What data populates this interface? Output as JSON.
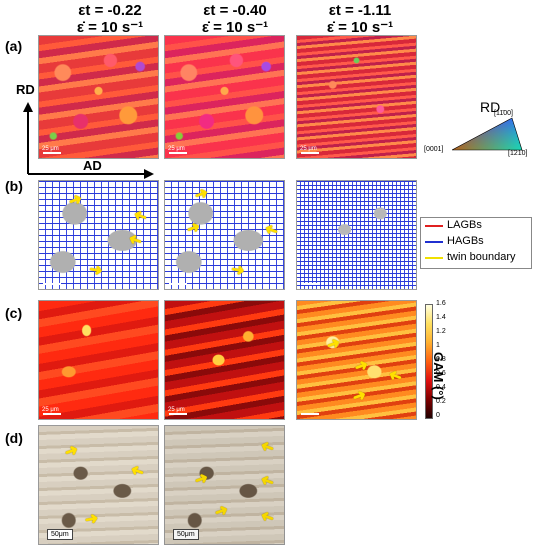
{
  "columns": [
    {
      "strain": "εt = -0.22",
      "rate": "ε̇ = 10 s⁻¹"
    },
    {
      "strain": "εt = -0.40",
      "rate": "ε̇ = 10 s⁻¹"
    },
    {
      "strain": "εt = -1.11",
      "rate": "ε̇ = 10 s⁻¹"
    }
  ],
  "rows": {
    "a": "(a)",
    "b": "(b)",
    "c": "(c)",
    "d": "(d)"
  },
  "axes": {
    "rd": "RD",
    "ad": "AD"
  },
  "ipf_key": {
    "title": "RD",
    "corner_left": "[0001]",
    "corner_top": "[11̄00]",
    "corner_right": "[1̄21̄0]"
  },
  "boundary_legend": {
    "lagb": "LAGBs",
    "hagb": "HAGBs",
    "twin": "twin boundary",
    "colors": {
      "lagb": "#e02020",
      "hagb": "#2030d0",
      "twin": "#f0e000"
    }
  },
  "gam_bar": {
    "label": "GAM (°)",
    "ticks": [
      "1.6",
      "1.4",
      "1.2",
      "1",
      "0.8",
      "0.6",
      "0.4",
      "0.2",
      "0"
    ]
  },
  "scale_labels": {
    "ebsd": "25 μm",
    "sem": "50μm"
  }
}
